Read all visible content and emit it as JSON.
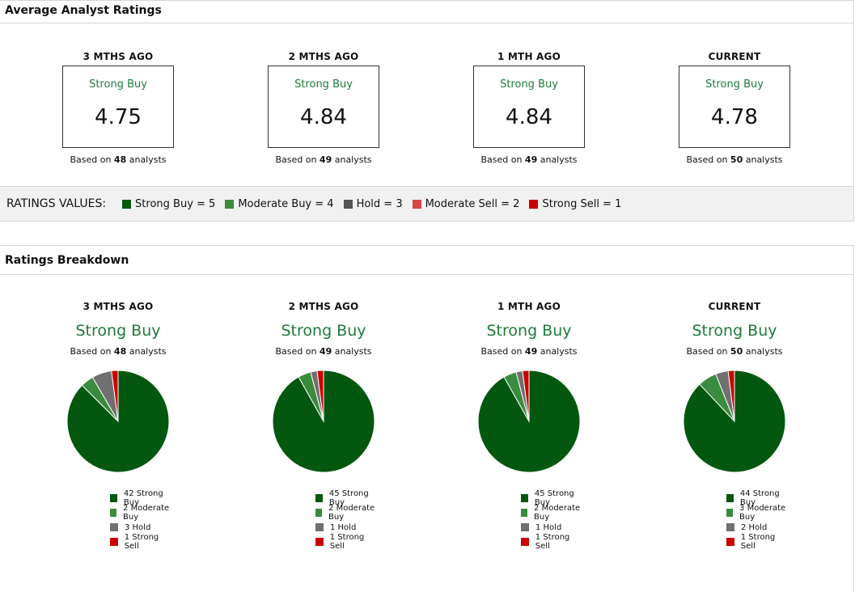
{
  "sections": {
    "average_title": "Average Analyst Ratings",
    "breakdown_title": "Ratings Breakdown"
  },
  "colors": {
    "strong_buy": "#03570f",
    "moderate_buy": "#3a8b3f",
    "hold": "#707070",
    "moderate_sell": "#d84545",
    "strong_sell": "#cc0000"
  },
  "periods": [
    {
      "label": "3 MTHS AGO",
      "rating": "Strong Buy",
      "value": "4.75",
      "based_prefix": "Based on ",
      "analysts": "48",
      "based_suffix": " analysts",
      "legend": [
        "42 Strong Buy",
        "2 Moderate Buy",
        "3 Hold",
        "1 Strong Sell"
      ]
    },
    {
      "label": "2 MTHS AGO",
      "rating": "Strong Buy",
      "value": "4.84",
      "based_prefix": "Based on ",
      "analysts": "49",
      "based_suffix": " analysts",
      "legend": [
        "45 Strong Buy",
        "2 Moderate Buy",
        "1 Hold",
        "1 Strong Sell"
      ]
    },
    {
      "label": "1 MTH AGO",
      "rating": "Strong Buy",
      "value": "4.84",
      "based_prefix": "Based on ",
      "analysts": "49",
      "based_suffix": " analysts",
      "legend": [
        "45 Strong Buy",
        "2 Moderate Buy",
        "1 Hold",
        "1 Strong Sell"
      ]
    },
    {
      "label": "CURRENT",
      "rating": "Strong Buy",
      "value": "4.78",
      "based_prefix": "Based on ",
      "analysts": "50",
      "based_suffix": " analysts",
      "legend": [
        "44 Strong Buy",
        "3 Moderate Buy",
        "2 Hold",
        "1 Strong Sell"
      ]
    }
  ],
  "ratings_values": {
    "title": "RATINGS VALUES:",
    "items": [
      "Strong Buy = 5",
      "Moderate Buy = 4",
      "Hold = 3",
      "Moderate Sell = 2",
      "Strong Sell = 1"
    ]
  },
  "chart_data": [
    {
      "type": "pie",
      "title": "3 MTHS AGO",
      "categories": [
        "Strong Buy",
        "Moderate Buy",
        "Hold",
        "Strong Sell"
      ],
      "values": [
        42,
        2,
        3,
        1
      ]
    },
    {
      "type": "pie",
      "title": "2 MTHS AGO",
      "categories": [
        "Strong Buy",
        "Moderate Buy",
        "Hold",
        "Strong Sell"
      ],
      "values": [
        45,
        2,
        1,
        1
      ]
    },
    {
      "type": "pie",
      "title": "1 MTH AGO",
      "categories": [
        "Strong Buy",
        "Moderate Buy",
        "Hold",
        "Strong Sell"
      ],
      "values": [
        45,
        2,
        1,
        1
      ]
    },
    {
      "type": "pie",
      "title": "CURRENT",
      "categories": [
        "Strong Buy",
        "Moderate Buy",
        "Hold",
        "Strong Sell"
      ],
      "values": [
        44,
        3,
        2,
        1
      ]
    }
  ]
}
